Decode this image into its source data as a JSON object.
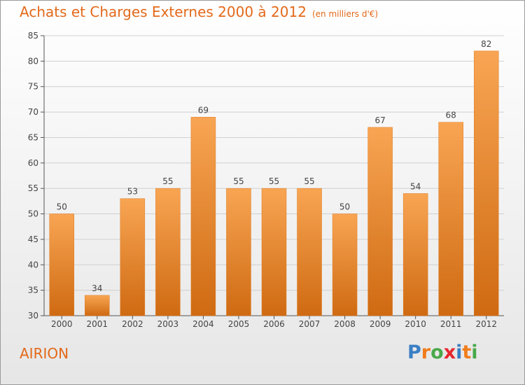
{
  "header": {
    "title": "Achats et Charges Externes 2000 à 2012",
    "subtitle": "(en milliers d'€)"
  },
  "footer": {
    "place": "AIRION",
    "brand": "Proxiti"
  },
  "colors": {
    "bar": "#f08a2a",
    "title": "#e3691a",
    "axis": "#555555"
  },
  "chart_data": {
    "type": "bar",
    "title": "Achats et Charges Externes 2000 à 2012",
    "subtitle": "(en milliers d'€)",
    "categories": [
      "2000",
      "2001",
      "2002",
      "2003",
      "2004",
      "2005",
      "2006",
      "2007",
      "2008",
      "2009",
      "2010",
      "2011",
      "2012"
    ],
    "values": [
      50,
      34,
      53,
      55,
      69,
      55,
      55,
      55,
      50,
      67,
      54,
      68,
      82
    ],
    "ylim": [
      30,
      85
    ],
    "yticks": [
      30,
      35,
      40,
      45,
      50,
      55,
      60,
      65,
      70,
      75,
      80,
      85
    ],
    "grid": true,
    "data_labels": true
  }
}
